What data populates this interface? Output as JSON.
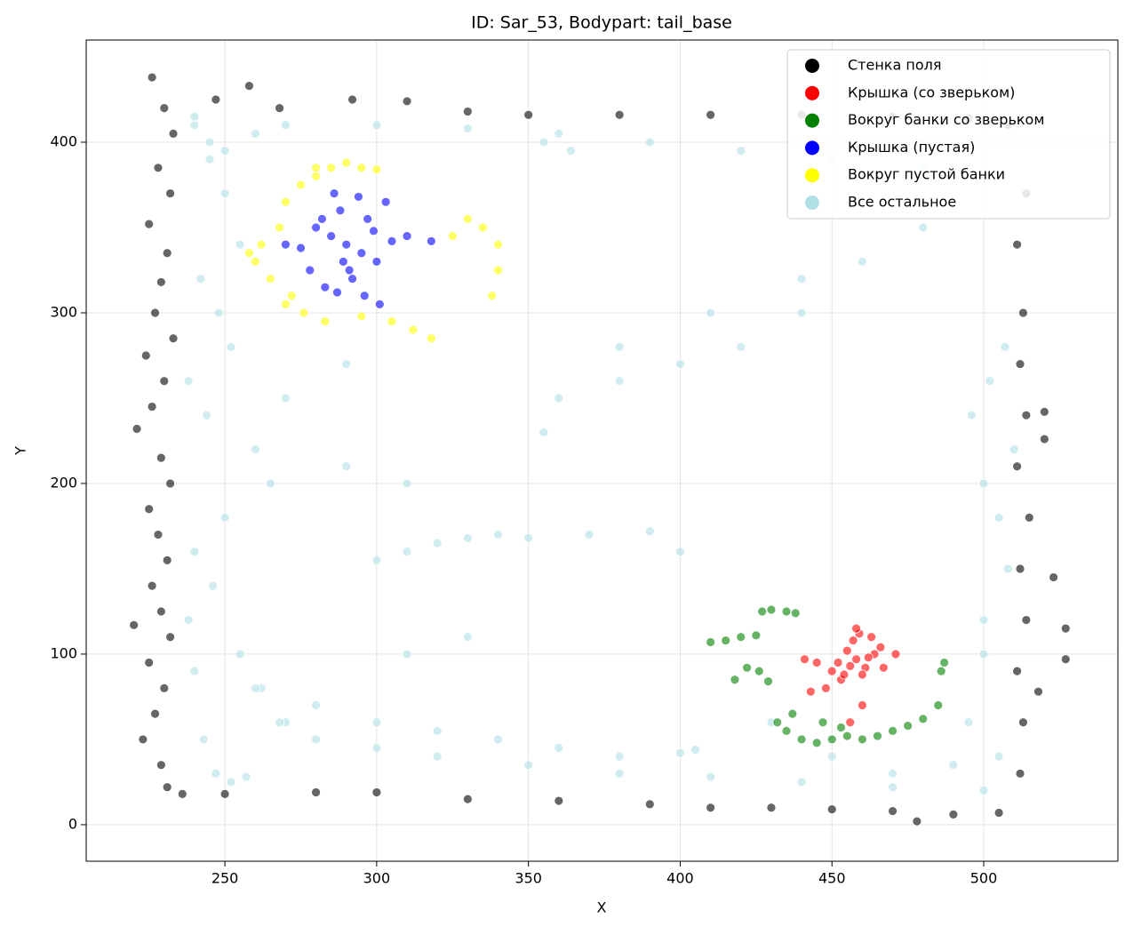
{
  "chart_data": {
    "type": "scatter",
    "title": "ID: Sar_53, Bodypart: tail_base",
    "x_label": "X",
    "y_label": "Y",
    "xlim": [
      204.3,
      544.2
    ],
    "ylim": [
      -21.4,
      459.9
    ],
    "xticks": [
      250,
      300,
      350,
      400,
      450,
      500
    ],
    "yticks": [
      0,
      100,
      200,
      300,
      400
    ],
    "grid": true,
    "legend": "upper right",
    "alpha": 0.6,
    "series": [
      {
        "name": "Стенка поля",
        "color": "#000000",
        "x": [
          226,
          230,
          233,
          228,
          232,
          225,
          231,
          229,
          227,
          233,
          224,
          230,
          226,
          221,
          229,
          232,
          225,
          228,
          231,
          226,
          229,
          220,
          232,
          225,
          230,
          227,
          223,
          229,
          231,
          236,
          247,
          258,
          268,
          292,
          310,
          330,
          350,
          380,
          410,
          440,
          470,
          495,
          508,
          250,
          280,
          300,
          330,
          360,
          390,
          410,
          430,
          450,
          470,
          478,
          490,
          505,
          512,
          513,
          511,
          514,
          512,
          515,
          511,
          514,
          512,
          513,
          511,
          514,
          520,
          520,
          518,
          527,
          527,
          523
        ],
        "y": [
          438,
          420,
          405,
          385,
          370,
          352,
          335,
          318,
          300,
          285,
          275,
          260,
          245,
          232,
          215,
          200,
          185,
          170,
          155,
          140,
          125,
          117,
          110,
          95,
          80,
          65,
          50,
          35,
          22,
          18,
          425,
          433,
          420,
          425,
          424,
          418,
          416,
          416,
          416,
          416,
          415,
          414,
          410,
          18,
          19,
          19,
          15,
          14,
          12,
          10,
          10,
          9,
          8,
          2,
          6,
          7,
          30,
          60,
          90,
          120,
          150,
          180,
          210,
          240,
          270,
          300,
          340,
          370,
          242,
          226,
          78,
          115,
          97,
          145
        ]
      },
      {
        "name": "Крышка (со зверьком)",
        "color": "#ff0000",
        "x": [
          458,
          455,
          461,
          452,
          464,
          457,
          460,
          450,
          466,
          453,
          459,
          462,
          448,
          456,
          463,
          445,
          441,
          471,
          443,
          456,
          460,
          454,
          467,
          458
        ],
        "y": [
          97,
          102,
          92,
          95,
          100,
          108,
          88,
          90,
          104,
          85,
          112,
          98,
          80,
          93,
          110,
          95,
          97,
          100,
          78,
          60,
          70,
          88,
          92,
          115
        ]
      },
      {
        "name": "Вокруг банки со зверьком",
        "color": "#008000",
        "x": [
          410,
          415,
          420,
          425,
          427,
          430,
          435,
          438,
          418,
          422,
          426,
          429,
          432,
          435,
          440,
          445,
          450,
          455,
          460,
          465,
          470,
          475,
          480,
          485,
          487,
          486,
          437,
          447,
          453
        ],
        "y": [
          107,
          108,
          110,
          111,
          125,
          126,
          125,
          124,
          85,
          92,
          90,
          84,
          60,
          55,
          50,
          48,
          50,
          52,
          50,
          52,
          55,
          58,
          62,
          70,
          95,
          90,
          65,
          60,
          57
        ]
      },
      {
        "name": "Крышка (пустая)",
        "color": "#0000ff",
        "x": [
          290,
          285,
          295,
          280,
          300,
          288,
          292,
          275,
          305,
          283,
          297,
          310,
          318,
          278,
          286,
          294,
          301,
          289,
          282,
          296,
          270,
          303,
          291,
          287,
          299
        ],
        "y": [
          340,
          345,
          335,
          350,
          330,
          360,
          320,
          338,
          342,
          315,
          355,
          345,
          342,
          325,
          370,
          368,
          305,
          330,
          355,
          310,
          340,
          365,
          325,
          312,
          348
        ],
        "_": null
      },
      {
        "name": "Вокруг пустой банки",
        "color": "#ffff00",
        "x": [
          262,
          260,
          265,
          258,
          268,
          270,
          275,
          280,
          285,
          290,
          295,
          300,
          272,
          276,
          283,
          295,
          305,
          312,
          318,
          325,
          330,
          335,
          340,
          340,
          338,
          280,
          270
        ],
        "y": [
          340,
          330,
          320,
          335,
          350,
          365,
          375,
          380,
          385,
          388,
          385,
          384,
          310,
          300,
          295,
          298,
          295,
          290,
          285,
          345,
          355,
          350,
          340,
          325,
          310,
          385,
          305
        ],
        "_": null
      },
      {
        "name": "Все остальное",
        "color": "#b0e0e6",
        "x": [
          240,
          245,
          250,
          255,
          242,
          248,
          252,
          238,
          244,
          260,
          265,
          250,
          240,
          246,
          238,
          255,
          262,
          270,
          280,
          300,
          320,
          350,
          380,
          410,
          440,
          470,
          500,
          505,
          495,
          500,
          508,
          240,
          245,
          250,
          260,
          270,
          300,
          330,
          360,
          390,
          420,
          450,
          480,
          500,
          240,
          260,
          280,
          300,
          320,
          340,
          360,
          380,
          400,
          405,
          350,
          370,
          390,
          400,
          300,
          310,
          320,
          330,
          340,
          360,
          380,
          400,
          420,
          440,
          460,
          480,
          290,
          310,
          270,
          290,
          430,
          450,
          470,
          490,
          500,
          505,
          496,
          500,
          507,
          502,
          510,
          243,
          247,
          252,
          257,
          268,
          310,
          330,
          355,
          380,
          410,
          440,
          355,
          364
        ],
        "y": [
          410,
          390,
          370,
          340,
          320,
          300,
          280,
          260,
          240,
          220,
          200,
          180,
          160,
          140,
          120,
          100,
          80,
          60,
          50,
          45,
          40,
          35,
          30,
          28,
          25,
          22,
          20,
          40,
          60,
          100,
          150,
          415,
          400,
          395,
          405,
          410,
          410,
          408,
          405,
          400,
          395,
          390,
          385,
          380,
          90,
          80,
          70,
          60,
          55,
          50,
          45,
          40,
          42,
          44,
          168,
          170,
          172,
          160,
          155,
          160,
          165,
          168,
          170,
          250,
          260,
          270,
          280,
          300,
          330,
          350,
          210,
          200,
          250,
          270,
          60,
          40,
          30,
          35,
          120,
          180,
          240,
          200,
          280,
          260,
          220,
          50,
          30,
          25,
          28,
          60,
          100,
          110,
          230,
          280,
          300,
          320,
          400,
          395
        ]
      }
    ]
  }
}
